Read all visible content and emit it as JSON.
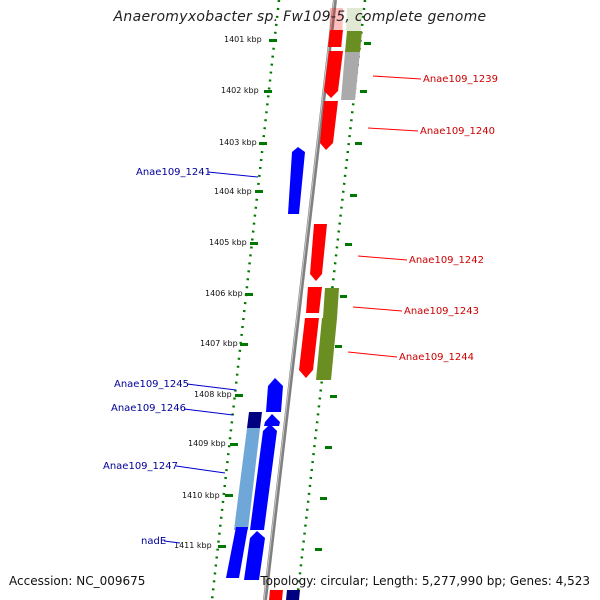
{
  "title": "Anaeromyxobacter sp. Fw109-5, complete genome",
  "footer": {
    "accession": "Accession: NC_009675",
    "topology": "Topology: circular; Length: 5,277,990 bp; Genes: 4,523"
  },
  "colors": {
    "forward_gene": "#ff0000",
    "reverse_gene": "#0000ff",
    "axis": "#808080",
    "tick": "#007700",
    "forward_label": "#cc0000",
    "reverse_label": "#000099",
    "cds_olive": "#6b8e23",
    "cds_grey": "#aaaaaa",
    "cds_steel": "#4682b4"
  },
  "kbp_ticks": [
    "1401 kbp",
    "1402 kbp",
    "1403 kbp",
    "1404 kbp",
    "1405 kbp",
    "1406 kbp",
    "1407 kbp",
    "1408 kbp",
    "1409 kbp",
    "1410 kbp",
    "1411 kbp"
  ],
  "gene_labels": {
    "forward": [
      "Anae109_1239",
      "Anae109_1240",
      "Anae109_1242",
      "Anae109_1243",
      "Anae109_1244"
    ],
    "reverse": [
      "Anae109_1241",
      "Anae109_1245",
      "Anae109_1246",
      "Anae109_1247",
      "nadE"
    ]
  }
}
